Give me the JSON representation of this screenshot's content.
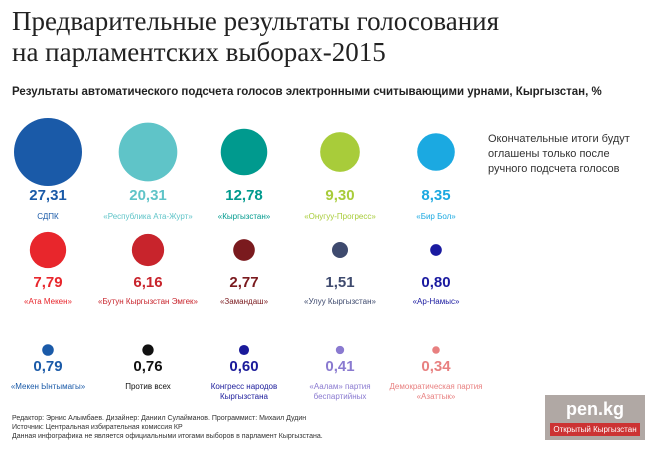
{
  "chart_data": {
    "type": "bubble",
    "title": "Предварительные результаты голосования\nна парламентских выборах-2015",
    "subtitle": "Результаты автоматического подсчета голосов электронными считывающими урнами, Кыргызстан, %",
    "note": "Окончательные итоги будут оглашены только после ручного подсчета голосов",
    "categories": [
      "СДПК",
      "«Республика Ата-Журт»",
      "«Кыргызстан»",
      "«Онугуу-Прогресс»",
      "«Бир Бол»",
      "«Ата Мекен»",
      "«Бутун Кыргызстан Эмгек»",
      "«Замандаш»",
      "«Улуу Кыргызстан»",
      "«Ар-Намыс»",
      "«Мекен Ынтымагы»",
      "Против всех",
      "Конгресс народов\nКыргызстана",
      "«Аалам» партия\nбеспартийных",
      "Демократическая партия\n«Азаттык»"
    ],
    "values": [
      27.31,
      20.31,
      12.78,
      9.3,
      8.35,
      7.79,
      6.16,
      2.77,
      1.51,
      0.8,
      0.79,
      0.76,
      0.6,
      0.41,
      0.34
    ],
    "value_labels": [
      "27,31",
      "20,31",
      "12,78",
      "9,30",
      "8,35",
      "7,79",
      "6,16",
      "2,77",
      "1,51",
      "0,80",
      "0,79",
      "0,76",
      "0,60",
      "0,41",
      "0,34"
    ],
    "colors": [
      "#1a5aa8",
      "#5fc4c8",
      "#009a8e",
      "#a8cc3a",
      "#1ba9e1",
      "#e8262c",
      "#c8242c",
      "#7a1a1e",
      "#3e4a6e",
      "#1a1aa0",
      "#1a5aa8",
      "#111111",
      "#1a1a9a",
      "#8a7ad0",
      "#e88080"
    ],
    "footer": [
      "Редактор: Эрнис Алымбаев. Дизайнер: Даниил Сулайманов. Программист: Михаил Дудин",
      "Источник: Центральная избирательная комиссия КР",
      "Данная инфографика не является официальными итогами выборов в парламент Кыргызстана."
    ],
    "logo": [
      "pen.kg",
      "Открытый Кыргызстан"
    ]
  }
}
